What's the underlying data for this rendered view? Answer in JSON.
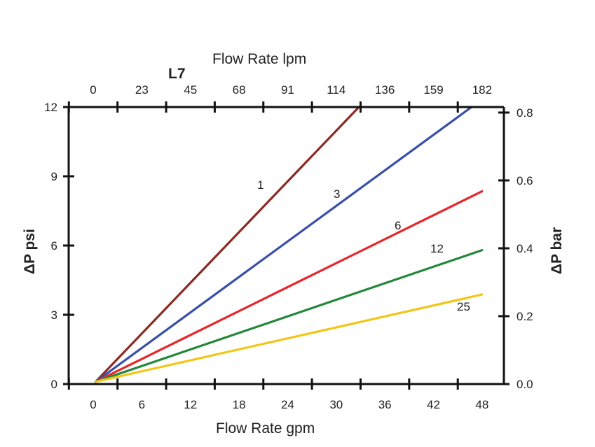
{
  "chart_data": {
    "type": "line",
    "title": "L7",
    "xlabel": "Flow Rate gpm",
    "x2label": "Flow Rate lpm",
    "ylabel": "ΔP psi",
    "y2label": "ΔP bar",
    "xlim": [
      -3,
      50.7
    ],
    "ylim": [
      0,
      12
    ],
    "x_ticks": [
      "0",
      "6",
      "12",
      "18",
      "24",
      "30",
      "36",
      "42",
      "48"
    ],
    "x2_ticks": [
      "0",
      "23",
      "45",
      "68",
      "91",
      "114",
      "136",
      "159",
      "182"
    ],
    "y_ticks": [
      "0",
      "3",
      "6",
      "9",
      "12"
    ],
    "y2_ticks": [
      "0.0",
      "0.2",
      "0.4",
      "0.6",
      "0.8"
    ],
    "grid": false,
    "series": [
      {
        "name": "1",
        "color": "#8b2a22",
        "x": [
          0.3,
          32.8
        ],
        "y": [
          0.1,
          12
        ]
      },
      {
        "name": "3",
        "color": "#3a4fa8",
        "x": [
          0.3,
          46.7
        ],
        "y": [
          0.1,
          12
        ]
      },
      {
        "name": "6",
        "color": "#e8262a",
        "x": [
          0.3,
          48
        ],
        "y": [
          0.1,
          8.35
        ]
      },
      {
        "name": "12",
        "color": "#24883a",
        "x": [
          0.3,
          48
        ],
        "y": [
          0.1,
          5.8
        ]
      },
      {
        "name": "25",
        "color": "#f2c616",
        "x": [
          0.3,
          48
        ],
        "y": [
          0.1,
          3.88
        ]
      }
    ]
  }
}
